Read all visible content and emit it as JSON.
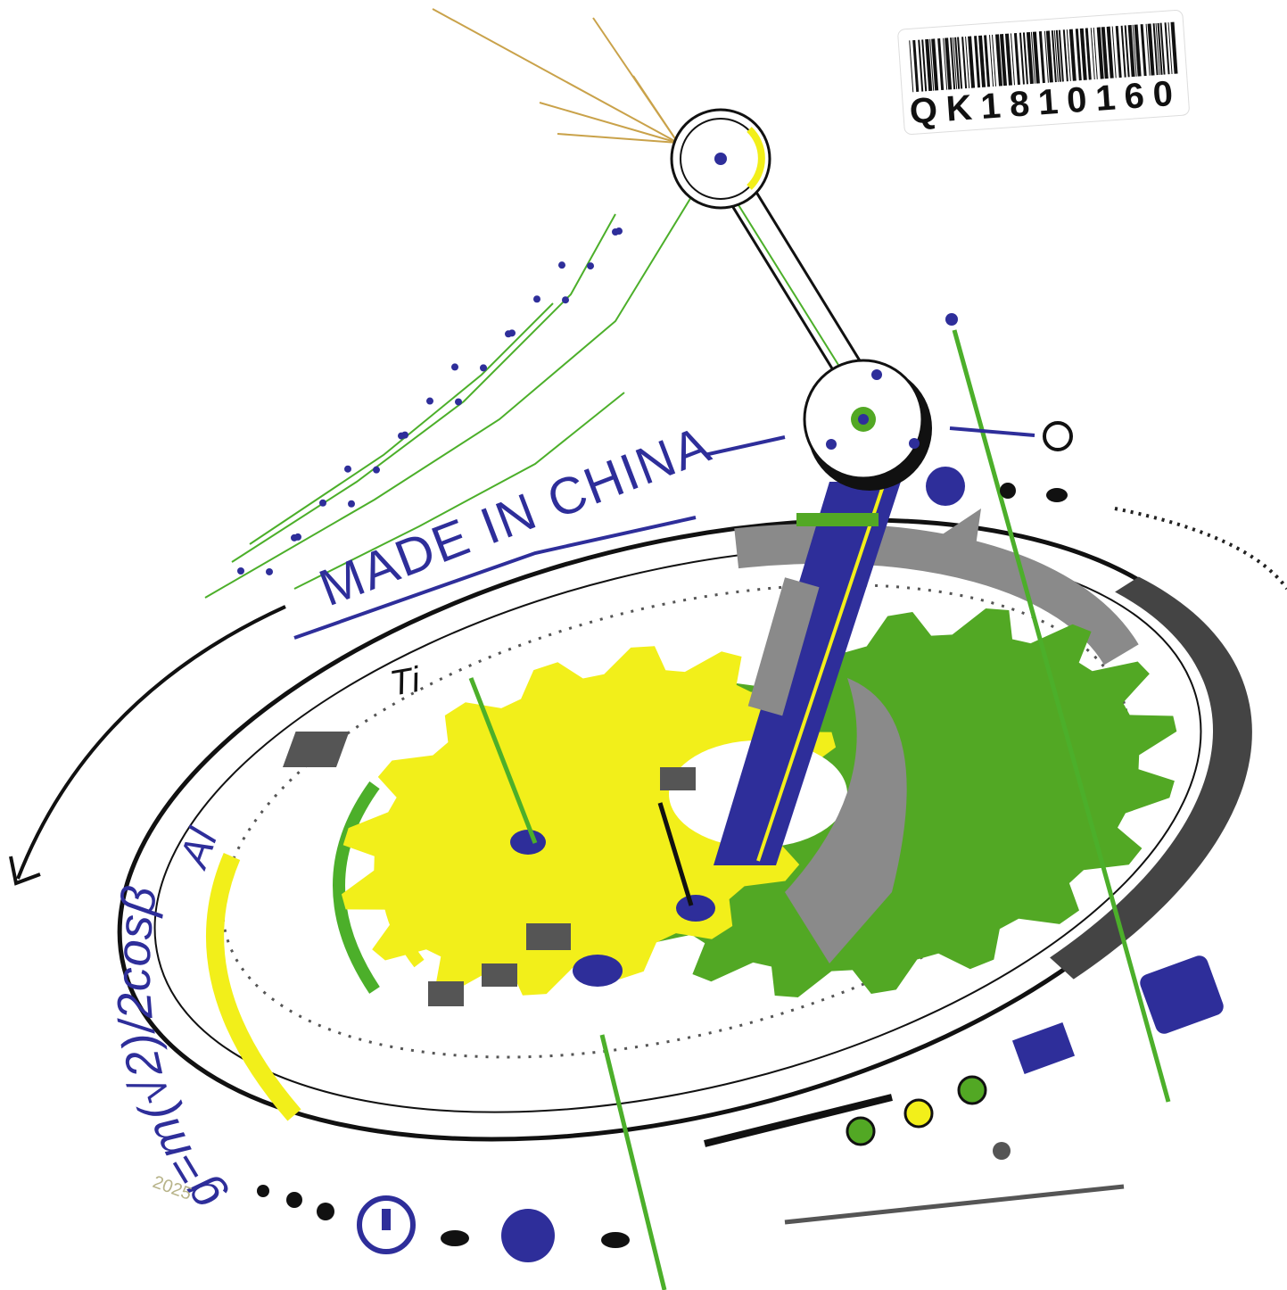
{
  "barcode": {
    "code": "QK1810160"
  },
  "headline": "MADE IN CHINA",
  "formula": "g=m(√2)/2cosβ",
  "elements": [
    "Ti",
    "Al"
  ],
  "year": "2025"
}
